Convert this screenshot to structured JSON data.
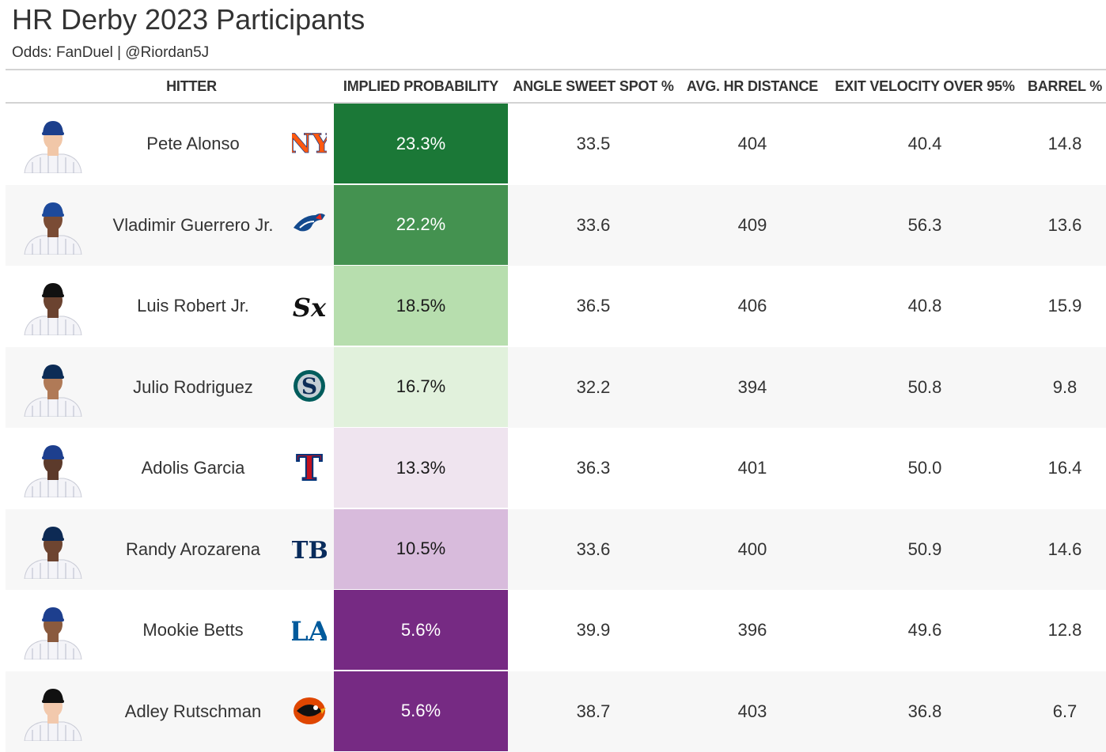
{
  "title": "HR Derby 2023 Participants",
  "subtitle": "Odds: FanDuel | @Riordan5J",
  "columns": [
    "HITTER",
    "IMPLIED PROBABILITY",
    "ANGLE SWEET SPOT %",
    "AVG. HR DISTANCE",
    "EXIT VELOCITY OVER 95%",
    "BARREL %"
  ],
  "chart_data": {
    "type": "table",
    "columns": [
      "HITTER",
      "IMPLIED PROBABILITY",
      "ANGLE SWEET SPOT %",
      "AVG. HR DISTANCE",
      "EXIT VELOCITY OVER 95%",
      "BARREL %"
    ],
    "rows": [
      {
        "hitter": "Pete Alonso",
        "team": "mets-logo",
        "prob": "23.3%",
        "prob_value": 23.3,
        "sweet": "33.5",
        "dist": "404",
        "ev": "40.4",
        "barrel": "14.8",
        "prob_bg": "#1b7837",
        "prob_fg": "#ffffff",
        "cap": "#1c3f8c",
        "skin": "#f1c7a8"
      },
      {
        "hitter": "Vladimir Guerrero Jr.",
        "team": "blue-jays-logo",
        "prob": "22.2%",
        "prob_value": 22.2,
        "sweet": "33.6",
        "dist": "409",
        "ev": "56.3",
        "barrel": "13.6",
        "prob_bg": "#449250",
        "prob_fg": "#ffffff",
        "cap": "#1d4a9c",
        "skin": "#7a4c35"
      },
      {
        "hitter": "Luis Robert Jr.",
        "team": "white-sox-logo",
        "prob": "18.5%",
        "prob_value": 18.5,
        "sweet": "36.5",
        "dist": "406",
        "ev": "40.8",
        "barrel": "15.9",
        "prob_bg": "#b7deae",
        "prob_fg": "#1a1a1a",
        "cap": "#111111",
        "skin": "#6b4330"
      },
      {
        "hitter": "Julio Rodriguez",
        "team": "mariners-logo",
        "prob": "16.7%",
        "prob_value": 16.7,
        "sweet": "32.2",
        "dist": "394",
        "ev": "50.8",
        "barrel": "9.8",
        "prob_bg": "#e1f1dc",
        "prob_fg": "#1a1a1a",
        "cap": "#0c2c56",
        "skin": "#b07a57"
      },
      {
        "hitter": "Adolis Garcia",
        "team": "rangers-logo",
        "prob": "13.3%",
        "prob_value": 13.3,
        "sweet": "36.3",
        "dist": "401",
        "ev": "50.0",
        "barrel": "16.4",
        "prob_bg": "#efe4ef",
        "prob_fg": "#1a1a1a",
        "cap": "#1d3f8e",
        "skin": "#5c3a2b"
      },
      {
        "hitter": "Randy Arozarena",
        "team": "rays-logo",
        "prob": "10.5%",
        "prob_value": 10.5,
        "sweet": "33.6",
        "dist": "400",
        "ev": "50.9",
        "barrel": "14.6",
        "prob_bg": "#d8bbdc",
        "prob_fg": "#1a1a1a",
        "cap": "#0d2a54",
        "skin": "#6e4531"
      },
      {
        "hitter": "Mookie Betts",
        "team": "dodgers-logo",
        "prob": "5.6%",
        "prob_value": 5.6,
        "sweet": "39.9",
        "dist": "396",
        "ev": "49.6",
        "barrel": "12.8",
        "prob_bg": "#762a83",
        "prob_fg": "#ffffff",
        "cap": "#1d3f8e",
        "skin": "#8a5a3e"
      },
      {
        "hitter": "Adley Rutschman",
        "team": "orioles-logo",
        "prob": "5.6%",
        "prob_value": 5.6,
        "sweet": "38.7",
        "dist": "403",
        "ev": "36.8",
        "barrel": "6.7",
        "prob_bg": "#762a83",
        "prob_fg": "#ffffff",
        "cap": "#111111",
        "skin": "#f2c9ad"
      }
    ]
  }
}
